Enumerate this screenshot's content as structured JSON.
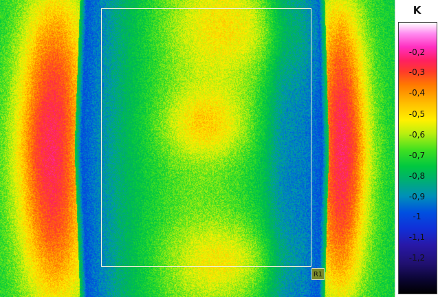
{
  "roi": {
    "label": "R1"
  },
  "scale": {
    "unit": "K",
    "ticks": [
      "-0,2",
      "-0,3",
      "-0,4",
      "-0,5",
      "-0,6",
      "-0,7",
      "-0,8",
      "-0,9",
      "-1",
      "-1,1",
      "-1,2"
    ]
  }
}
